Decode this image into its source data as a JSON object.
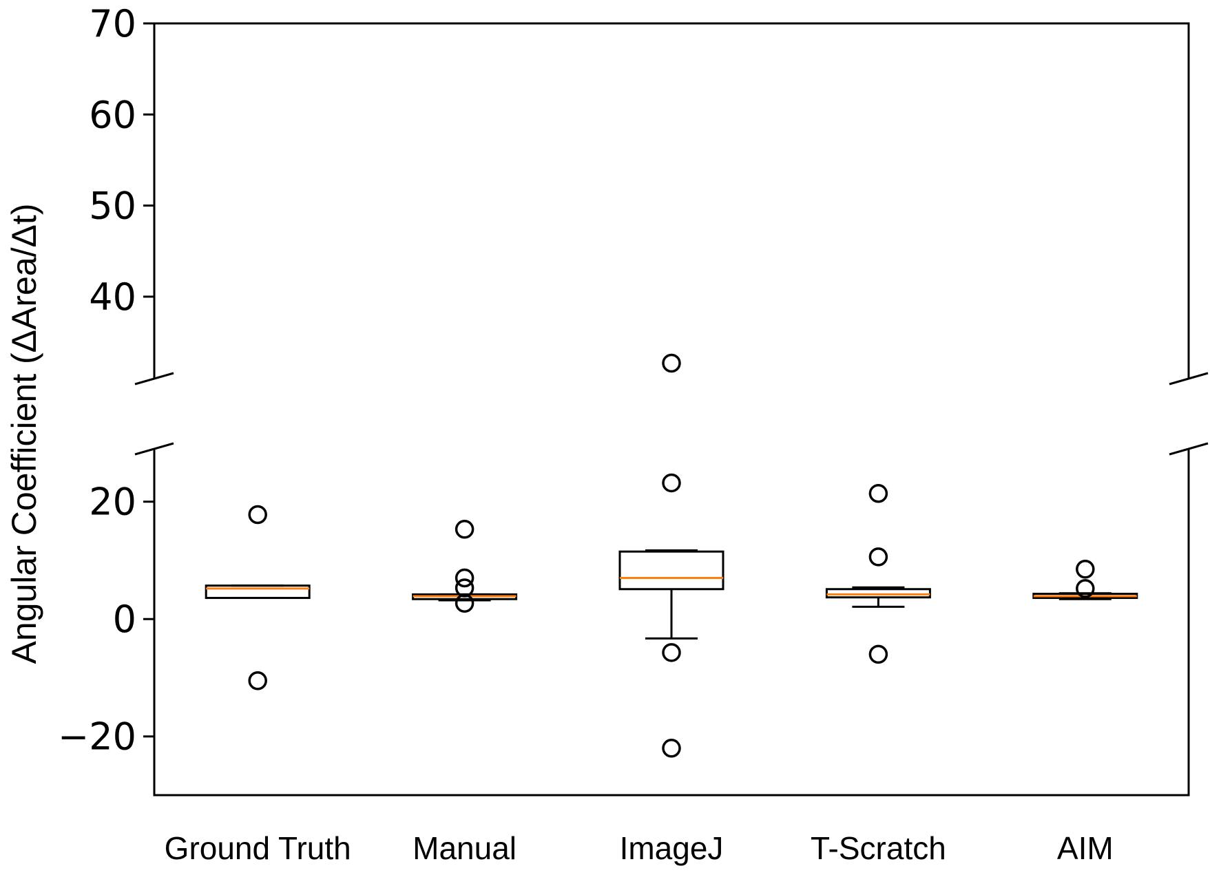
{
  "chart_data": {
    "type": "box",
    "ylabel": "Angular Coefficient (ΔArea/Δt)",
    "xlabel": "",
    "title": "",
    "axis_break": true,
    "upper_panel": {
      "ylim": [
        31,
        70
      ],
      "yticks": [
        40,
        50,
        60,
        70
      ]
    },
    "lower_panel": {
      "ylim": [
        -30,
        29
      ],
      "yticks": [
        -20,
        0,
        20
      ]
    },
    "yticks_text": {
      "70": "70",
      "60": "60",
      "50": "50",
      "40": "40",
      "20": "20",
      "0": "0",
      "-20": "−20"
    },
    "categories": [
      "Ground Truth",
      "Manual",
      "ImageJ",
      "T-Scratch",
      "AIM"
    ],
    "boxes": [
      {
        "name": "Ground Truth",
        "whisker_low": 3.6,
        "q1": 3.6,
        "median": 5.2,
        "q3": 5.7,
        "whisker_high": 5.7,
        "outliers": [
          17.8,
          -10.5
        ]
      },
      {
        "name": "Manual",
        "whisker_low": 3.2,
        "q1": 3.4,
        "median": 3.9,
        "q3": 4.2,
        "whisker_high": 4.2,
        "outliers": [
          15.3,
          7.0,
          5.3,
          2.7
        ]
      },
      {
        "name": "ImageJ",
        "whisker_low": -3.3,
        "q1": 5.1,
        "median": 7.0,
        "q3": 11.5,
        "whisker_high": 11.7,
        "outliers": [
          32.7,
          23.2,
          -5.7,
          -22.0
        ]
      },
      {
        "name": "T-Scratch",
        "whisker_low": 2.1,
        "q1": 3.7,
        "median": 4.2,
        "q3": 5.1,
        "whisker_high": 5.4,
        "outliers": [
          21.4,
          10.6,
          -6.0
        ]
      },
      {
        "name": "AIM",
        "whisker_low": 3.4,
        "q1": 3.6,
        "median": 3.9,
        "q3": 4.3,
        "whisker_high": 4.4,
        "outliers": [
          8.5,
          5.2
        ]
      }
    ],
    "colors": {
      "box": "#000000",
      "median": "#ff7f0e",
      "outlier": "#000000"
    },
    "grid": false,
    "legend": "none"
  }
}
